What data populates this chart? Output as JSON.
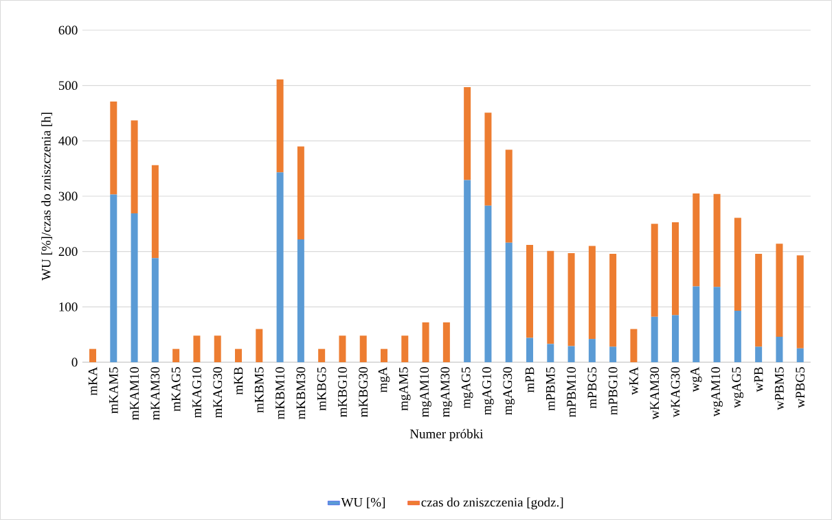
{
  "chart_data": {
    "type": "bar",
    "stacked": true,
    "xlabel": "Numer próbki",
    "ylabel": "WU [%]/czas do zniszczenia [h]",
    "categories": [
      "mKA",
      "mKAM5",
      "mKAM10",
      "mKAM30",
      "mKAG5",
      "mKAG10",
      "mKAG30",
      "mKB",
      "mKBM5",
      "mKBM10",
      "mKBM30",
      "mKBG5",
      "mKBG10",
      "mKBG30",
      "mgA",
      "mgAM5",
      "mgAM10",
      "mgAM30",
      "mgAG5",
      "mgAG10",
      "mgAG30",
      "mPB",
      "mPBM5",
      "mPBM10",
      "mPBG5",
      "mPBG10",
      "wKA",
      "wKAM30",
      "wKAG30",
      "wgA",
      "wgAM10",
      "wgAG5",
      "wPB",
      "wPBM5",
      "wPBG5"
    ],
    "series": [
      {
        "name": "WU [%]",
        "color": "#5b9bd5",
        "values": [
          0,
          303,
          269,
          188,
          0,
          0,
          0,
          0,
          0,
          343,
          222,
          0,
          0,
          0,
          0,
          0,
          0,
          0,
          329,
          283,
          216,
          44,
          33,
          29,
          42,
          28,
          0,
          82,
          85,
          137,
          136,
          93,
          28,
          46,
          25
        ]
      },
      {
        "name": "czas do zniszczenia [godz.]",
        "color": "#ed7d31",
        "values": [
          24,
          168,
          168,
          168,
          24,
          48,
          48,
          24,
          60,
          168,
          168,
          24,
          48,
          48,
          24,
          48,
          72,
          72,
          168,
          168,
          168,
          168,
          168,
          168,
          168,
          168,
          60,
          168,
          168,
          168,
          168,
          168,
          168,
          168,
          168
        ]
      }
    ],
    "ylim": [
      0,
      600
    ],
    "yticks": [
      0,
      100,
      200,
      300,
      400,
      500,
      600
    ],
    "grid": "y",
    "legend": "bottom"
  }
}
